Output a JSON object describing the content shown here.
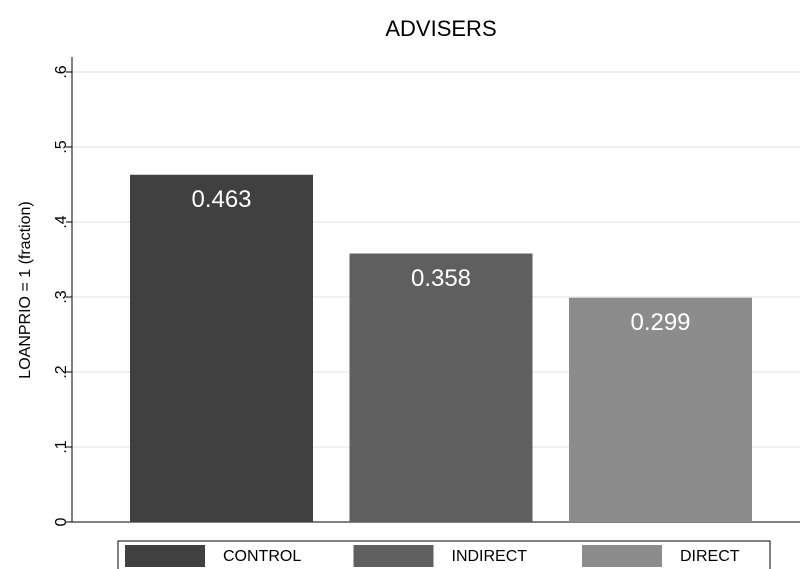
{
  "chart_data": {
    "type": "bar",
    "title": "ADVISERS",
    "y_label": "LOANPRIO = 1 (fraction)",
    "series": [
      {
        "name": "CONTROL",
        "color": "#404040",
        "values": [
          0.463
        ]
      },
      {
        "name": "INDIRECT",
        "color": "#5f5f5f",
        "values": [
          0.358
        ]
      },
      {
        "name": "DIRECT",
        "color": "#8c8c8c",
        "values": [
          0.299
        ]
      }
    ],
    "ylim": [
      0,
      0.6
    ],
    "yticks": [
      0,
      {
        "value": 0.1,
        "label": ".1"
      },
      {
        "value": 0.2,
        "label": ".2"
      },
      {
        "value": 0.3,
        "label": ".3"
      },
      {
        "value": 0.4,
        "label": ".4"
      },
      {
        "value": 0.5,
        "label": ".5"
      },
      {
        "value": 0.6,
        "label": ".6"
      }
    ],
    "grid": true,
    "legend": "bottom"
  }
}
